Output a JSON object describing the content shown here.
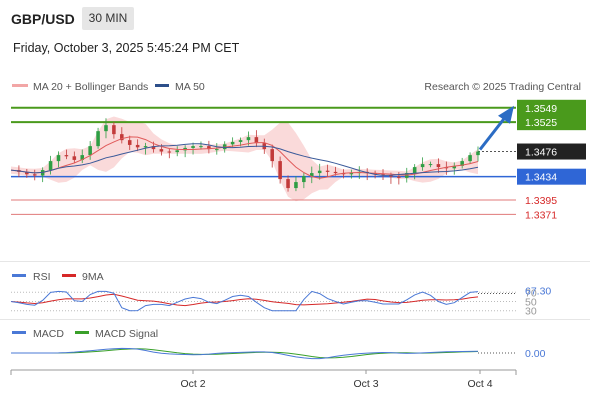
{
  "header": {
    "symbol": "GBP/USD",
    "interval": "30 MIN",
    "datetime": "Friday, October 3, 2025 5:45:24 PM CET"
  },
  "legend": {
    "ma20": "MA 20 + Bollinger Bands",
    "ma50": "MA 50",
    "credit": "Research © 2025 Trading Central",
    "rsi": "RSI",
    "rsi_ma": "9MA",
    "macd": "MACD",
    "macd_signal": "MACD Signal"
  },
  "colors": {
    "resistance": "#4a9a1c",
    "support": "#2f66d6",
    "target": "#e07a7a",
    "candle_up": "#2e9e44",
    "candle_down": "#c23a3a",
    "ma20": "#e05a5a",
    "ma50": "#3a5a9a",
    "band": "#f9d3d3",
    "arrow": "#2b6cc4"
  },
  "chart_data": {
    "type": "candlestick",
    "x_ticks": [
      "Oct 2",
      "Oct 3",
      "Oct 4"
    ],
    "price_range": [
      1.3345,
      1.3562
    ],
    "current_price": 1.3476,
    "levels": [
      {
        "label": "1.3549",
        "value": 1.3549,
        "kind": "resistance"
      },
      {
        "label": "1.3525",
        "value": 1.3525,
        "kind": "resistance"
      },
      {
        "label": "1.3476",
        "value": 1.3476,
        "kind": "current"
      },
      {
        "label": "1.3434",
        "value": 1.3434,
        "kind": "support"
      },
      {
        "label": "1.3395",
        "value": 1.3395,
        "kind": "target"
      },
      {
        "label": "1.3371",
        "value": 1.3371,
        "kind": "target"
      }
    ],
    "price_path": [
      1.3445,
      1.3442,
      1.3438,
      1.3436,
      1.3445,
      1.346,
      1.347,
      1.3468,
      1.3462,
      1.347,
      1.3485,
      1.351,
      1.352,
      1.3505,
      1.3495,
      1.3487,
      1.3483,
      1.3485,
      1.348,
      1.3476,
      1.3475,
      1.3478,
      1.3482,
      1.3485,
      1.3485,
      1.348,
      1.348,
      1.3488,
      1.3492,
      1.3495,
      1.35,
      1.349,
      1.348,
      1.346,
      1.343,
      1.3415,
      1.3425,
      1.3435,
      1.344,
      1.3444,
      1.3442,
      1.344,
      1.3438,
      1.344,
      1.3442,
      1.344,
      1.3438,
      1.3436,
      1.3434,
      1.3432,
      1.344,
      1.345,
      1.3455,
      1.3455,
      1.345,
      1.3448,
      1.3452,
      1.346,
      1.347,
      1.3476
    ],
    "rsi": {
      "last_label": "67.30",
      "levels": [
        70,
        50,
        30
      ]
    },
    "macd": {
      "last_label": "0.00"
    }
  }
}
